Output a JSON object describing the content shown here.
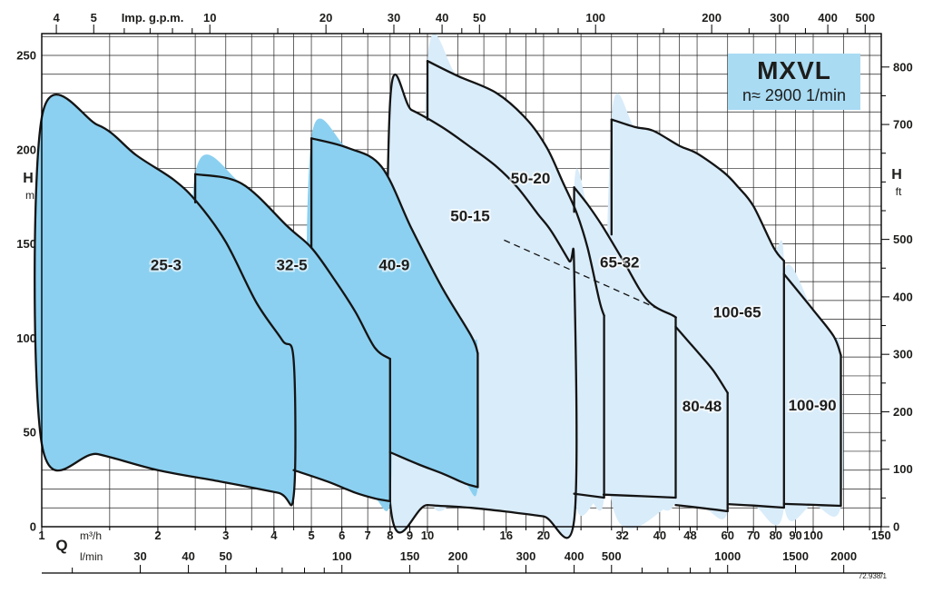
{
  "chart_data": {
    "type": "area",
    "title": "MXVL",
    "subtitle": "n≈ 2900 1/min",
    "ref": "72.938/1",
    "x_scale": "log",
    "x_range_m3h": [
      1,
      150
    ],
    "y_range_m": [
      0,
      261.5
    ],
    "colors": {
      "dark_fill": "#8bd0f0",
      "light_fill": "#d9ecfa",
      "outline": "#141414",
      "grid": "#222222",
      "title_box": "#a9dbf3",
      "text": "#1d1d1b"
    },
    "top_axis": {
      "label": "Imp. g.p.m.",
      "major": [
        4,
        5,
        10,
        20,
        30,
        40,
        50,
        100,
        200,
        300,
        400,
        500
      ],
      "minor": [
        6,
        7,
        8,
        9,
        15,
        25,
        35,
        45,
        60,
        70,
        80,
        90,
        150,
        250,
        350,
        450
      ]
    },
    "bottom_axis": {
      "label": "Q",
      "m3h_unit": "m³/h",
      "m3h_labels": [
        1,
        2,
        3,
        4,
        5,
        6,
        7,
        8,
        9,
        10,
        16,
        20,
        32,
        40,
        48,
        60,
        70,
        80,
        90,
        100,
        150
      ],
      "m3h_bold": [
        4,
        8,
        16,
        32,
        48,
        80
      ],
      "lmin_unit": "l/min",
      "lmin_labels": [
        30,
        40,
        50,
        100,
        150,
        200,
        300,
        400,
        500,
        1000,
        1500,
        2000
      ],
      "lmin_minor": [
        20,
        60,
        70,
        80,
        90,
        600,
        700,
        800,
        900
      ]
    },
    "left_axis": {
      "label": "H",
      "unit": "m",
      "ticks": [
        0,
        50,
        100,
        150,
        200,
        250
      ]
    },
    "right_axis": {
      "label": "H",
      "unit": "ft",
      "major": [
        0,
        100,
        200,
        300,
        400,
        500,
        700,
        800
      ],
      "minor": [
        50,
        150,
        250,
        350,
        450,
        550,
        600,
        650,
        750
      ]
    },
    "grid": {
      "q": [
        1.5,
        2,
        2.5,
        3,
        3.5,
        4,
        4.5,
        5,
        6,
        7,
        8,
        9,
        10,
        12,
        14,
        16,
        18,
        20,
        25,
        30,
        35,
        40,
        45,
        50,
        60,
        70,
        80,
        90,
        100,
        120,
        140
      ],
      "h_step": 10,
      "h_max": 260
    },
    "dashed_line": {
      "from": [
        15.8,
        152
      ],
      "to": [
        43.4,
        112
      ]
    },
    "pumps": [
      {
        "name": "50-15",
        "group": "light",
        "label_q": 12.9,
        "label_h": 165,
        "closed_stroke": true,
        "poly": [
          [
            8,
            13
          ],
          [
            8,
            225
          ],
          [
            9.1,
            221
          ],
          [
            10.9,
            212
          ],
          [
            13,
            201
          ],
          [
            15.1,
            191
          ],
          [
            17.1,
            180
          ],
          [
            19.3,
            166
          ],
          [
            20.9,
            157
          ],
          [
            23.3,
            141
          ],
          [
            24,
            137
          ],
          [
            24,
            3.4
          ],
          [
            20,
            5.5
          ],
          [
            16,
            8
          ],
          [
            13,
            10
          ],
          [
            10,
            11.5
          ]
        ],
        "strokes": []
      },
      {
        "name": "50-20",
        "group": "light",
        "label_q": 18.5,
        "label_h": 185,
        "closed_stroke": false,
        "poly": [
          [
            10,
            25
          ],
          [
            10,
            247
          ],
          [
            12,
            239
          ],
          [
            15.1,
            230
          ],
          [
            18.1,
            216
          ],
          [
            20.4,
            201
          ],
          [
            22.4,
            183
          ],
          [
            24.3,
            167
          ],
          [
            26,
            148
          ],
          [
            27.9,
            120
          ],
          [
            28.7,
            112
          ],
          [
            28.7,
            15.4
          ],
          [
            26,
            16.4
          ],
          [
            24,
            17.5
          ],
          [
            20,
            19.5
          ],
          [
            16,
            21.5
          ],
          [
            13,
            23.5
          ]
        ],
        "strokes": [
          [
            [
              10,
              216
            ],
            [
              10,
              247
            ]
          ],
          [
            [
              10,
              247
            ],
            [
              12,
              239
            ],
            [
              15.1,
              230
            ],
            [
              18.1,
              216
            ],
            [
              20.4,
              201
            ],
            [
              22.4,
              183
            ],
            [
              24.3,
              167
            ],
            [
              26,
              148
            ],
            [
              27.9,
              120
            ],
            [
              28.7,
              112
            ]
          ],
          [
            [
              28.7,
              112
            ],
            [
              28.7,
              15.4
            ]
          ],
          [
            [
              28.7,
              15.4
            ],
            [
              24,
              17.5
            ]
          ]
        ]
      },
      {
        "name": "65-32",
        "group": "light",
        "label_q": 31.5,
        "label_h": 140.5,
        "closed_stroke": false,
        "poly": [
          [
            24,
            18
          ],
          [
            24,
            180
          ],
          [
            26,
            171
          ],
          [
            28.3,
            160
          ],
          [
            32.2,
            141
          ],
          [
            37.2,
            120
          ],
          [
            43.3,
            112
          ],
          [
            44,
            111
          ],
          [
            44,
            15.4
          ],
          [
            36,
            16.2
          ],
          [
            28.6,
            17
          ]
        ],
        "strokes": [
          [
            [
              24,
              167
            ],
            [
              24,
              180
            ]
          ],
          [
            [
              24,
              180
            ],
            [
              26,
              171
            ],
            [
              28.3,
              160
            ],
            [
              32.2,
              141
            ],
            [
              37.2,
              120
            ],
            [
              43.3,
              112
            ],
            [
              44,
              111
            ]
          ],
          [
            [
              44,
              111
            ],
            [
              44,
              15.4
            ]
          ],
          [
            [
              44,
              15.4
            ],
            [
              36,
              16.2
            ],
            [
              28.6,
              17
            ]
          ]
        ]
      },
      {
        "name": "80-48",
        "group": "light",
        "label_q": 51.5,
        "label_h": 64,
        "closed_stroke": false,
        "poly": [
          [
            32,
            14
          ],
          [
            32,
            140
          ],
          [
            36,
            128
          ],
          [
            40,
            117
          ],
          [
            44,
            106
          ],
          [
            50,
            93
          ],
          [
            55,
            83
          ],
          [
            60,
            71
          ],
          [
            60,
            8.2
          ],
          [
            52,
            9.8
          ],
          [
            44,
            11.5
          ],
          [
            38,
            13
          ]
        ],
        "strokes": [
          [
            [
              44,
              106
            ],
            [
              50,
              93
            ],
            [
              55,
              83
            ],
            [
              60,
              71
            ]
          ],
          [
            [
              60,
              71
            ],
            [
              60,
              8.2
            ]
          ],
          [
            [
              60,
              8.2
            ],
            [
              52,
              9.8
            ],
            [
              44,
              11.5
            ]
          ]
        ]
      },
      {
        "name": "100-65",
        "group": "light",
        "label_q": 63.5,
        "label_h": 114,
        "closed_stroke": false,
        "poly": [
          [
            30,
            14
          ],
          [
            30,
            216
          ],
          [
            34.5,
            212
          ],
          [
            38.5,
            210
          ],
          [
            45,
            202
          ],
          [
            50,
            198
          ],
          [
            58.6,
            188
          ],
          [
            64,
            180
          ],
          [
            70,
            170
          ],
          [
            79,
            148
          ],
          [
            84,
            141
          ],
          [
            84,
            10.1
          ],
          [
            70,
            11.2
          ],
          [
            60,
            12
          ],
          [
            45,
            13.2
          ]
        ],
        "strokes": [
          [
            [
              30,
              155
            ],
            [
              30,
              216
            ]
          ],
          [
            [
              30,
              216
            ],
            [
              34.5,
              212
            ],
            [
              38.5,
              210
            ],
            [
              45,
              202
            ],
            [
              50,
              198
            ],
            [
              58.6,
              188
            ],
            [
              64,
              180
            ],
            [
              70,
              170
            ],
            [
              79,
              148
            ],
            [
              84,
              141
            ]
          ],
          [
            [
              84,
              141
            ],
            [
              84,
              10.1
            ]
          ],
          [
            [
              84,
              10.1
            ],
            [
              70,
              11.2
            ],
            [
              60,
              12
            ]
          ]
        ]
      },
      {
        "name": "100-90",
        "group": "light",
        "label_q": 99.5,
        "label_h": 64.5,
        "closed_stroke": false,
        "poly": [
          [
            84,
            12.1
          ],
          [
            84,
            134
          ],
          [
            100,
            115
          ],
          [
            113,
            101
          ],
          [
            118,
            91
          ],
          [
            118,
            11.1
          ],
          [
            100,
            11.6
          ]
        ],
        "strokes": [
          [
            [
              84,
              134
            ],
            [
              100,
              115
            ],
            [
              113,
              101
            ],
            [
              118,
              91
            ]
          ],
          [
            [
              118,
              91
            ],
            [
              118,
              11.1
            ]
          ],
          [
            [
              118,
              11.1
            ],
            [
              100,
              11.6
            ],
            [
              84,
              12.1
            ]
          ]
        ]
      },
      {
        "name": "25-3",
        "group": "dark",
        "label_q": 2.1,
        "label_h": 139,
        "closed_stroke": true,
        "poly": [
          [
            1,
            44
          ],
          [
            1,
            217
          ],
          [
            1.4,
            213
          ],
          [
            1.76,
            197
          ],
          [
            2.2,
            184
          ],
          [
            2.53,
            172
          ],
          [
            3,
            151
          ],
          [
            3.6,
            119
          ],
          [
            4.2,
            99
          ],
          [
            4.5,
            88
          ],
          [
            4.5,
            16.5
          ],
          [
            4.1,
            18
          ],
          [
            2.9,
            24
          ],
          [
            2,
            30
          ],
          [
            1.4,
            38.5
          ]
        ],
        "strokes": []
      },
      {
        "name": "32-5",
        "group": "dark",
        "label_q": 4.45,
        "label_h": 139,
        "closed_stroke": false,
        "poly": [
          [
            2.5,
            38
          ],
          [
            2.5,
            187
          ],
          [
            3.3,
            182
          ],
          [
            4.35,
            159
          ],
          [
            5,
            148
          ],
          [
            5.7,
            132
          ],
          [
            6.5,
            114
          ],
          [
            7.3,
            95
          ],
          [
            8,
            89
          ],
          [
            8,
            13.5
          ],
          [
            7.3,
            15
          ],
          [
            6.5,
            18
          ],
          [
            5.5,
            24
          ],
          [
            4.5,
            30
          ],
          [
            3.5,
            33
          ]
        ],
        "strokes": [
          [
            [
              2.5,
              172
            ],
            [
              2.5,
              187
            ]
          ],
          [
            [
              2.5,
              187
            ],
            [
              3.3,
              182
            ],
            [
              4.35,
              159
            ],
            [
              5,
              148
            ],
            [
              5.7,
              132
            ],
            [
              6.5,
              114
            ],
            [
              7.3,
              95
            ],
            [
              8,
              89
            ]
          ],
          [
            [
              8,
              89
            ],
            [
              8,
              13.5
            ]
          ],
          [
            [
              8,
              13.5
            ],
            [
              7.3,
              15
            ],
            [
              6.5,
              18
            ],
            [
              5.5,
              24
            ],
            [
              4.5,
              30
            ]
          ]
        ]
      },
      {
        "name": "40-9",
        "group": "dark",
        "label_q": 8.2,
        "label_h": 139,
        "closed_stroke": false,
        "poly": [
          [
            5,
            50
          ],
          [
            5,
            206
          ],
          [
            6.2,
            201
          ],
          [
            7.6,
            191
          ],
          [
            9.1,
            158
          ],
          [
            10.9,
            127
          ],
          [
            13,
            101
          ],
          [
            13.5,
            92
          ],
          [
            13.5,
            21
          ],
          [
            12.5,
            23
          ],
          [
            11,
            28
          ],
          [
            9.5,
            33
          ],
          [
            8,
            39.5
          ],
          [
            6.5,
            45
          ]
        ],
        "strokes": [
          [
            [
              5,
              148
            ],
            [
              5,
              206
            ]
          ],
          [
            [
              5,
              206
            ],
            [
              6.2,
              201
            ],
            [
              7.6,
              191
            ],
            [
              9.1,
              158
            ],
            [
              10.9,
              127
            ],
            [
              13,
              101
            ],
            [
              13.5,
              92
            ]
          ],
          [
            [
              13.5,
              92
            ],
            [
              13.5,
              21
            ]
          ],
          [
            [
              13.5,
              21
            ],
            [
              12.5,
              23
            ],
            [
              11,
              28
            ],
            [
              9.5,
              33
            ],
            [
              8,
              39.5
            ]
          ]
        ]
      }
    ]
  }
}
